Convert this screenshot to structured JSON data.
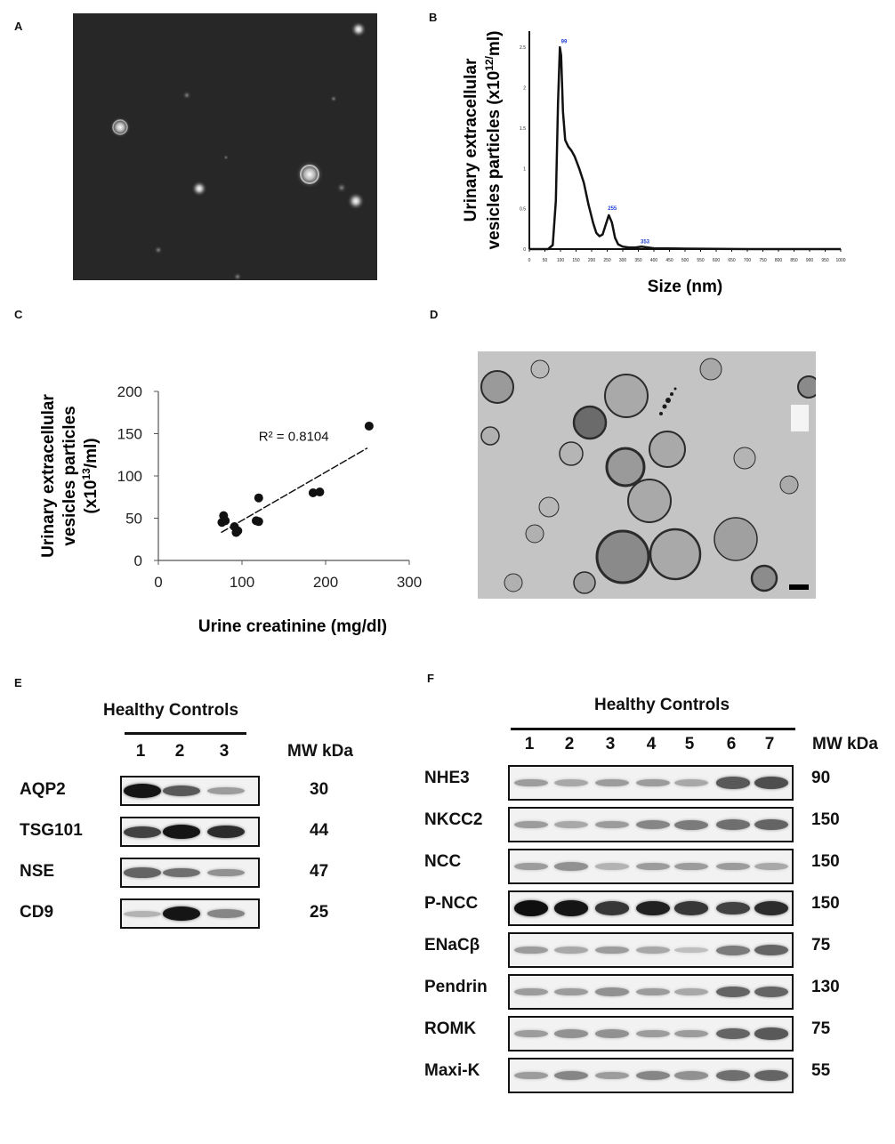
{
  "panels": {
    "a": "A",
    "b": "B",
    "c": "C",
    "d": "D",
    "e": "E",
    "f": "F"
  },
  "chart_data": [
    {
      "type": "line",
      "panel": "B",
      "xlabel": "Size (nm)",
      "ylabel_line1": "Urinary extracellular",
      "ylabel_line2": "vesicles  particles  (x10",
      "ylabel_sup": "12/",
      "ylabel_end": "ml)",
      "xlim": [
        0,
        1000
      ],
      "ylim": [
        0,
        2.7
      ],
      "xticks": [
        "0",
        "50",
        "100",
        "150",
        "200",
        "250",
        "300",
        "350",
        "400",
        "450",
        "500",
        "550",
        "600",
        "650",
        "700",
        "750",
        "800",
        "850",
        "900",
        "950",
        "1000"
      ],
      "yticks": [
        "0",
        "0.5",
        "1",
        "1.5",
        "2",
        "2.5"
      ],
      "peak_labels": [
        {
          "x": 100,
          "y": 2.52,
          "text": "99"
        },
        {
          "x": 255,
          "y": 0.45,
          "text": "255"
        },
        {
          "x": 360,
          "y": 0.04,
          "text": "353"
        }
      ],
      "series": [
        {
          "x": [
            0,
            60,
            75,
            85,
            92,
            98,
            102,
            108,
            115,
            125,
            135,
            145,
            160,
            175,
            190,
            205,
            215,
            225,
            235,
            245,
            255,
            265,
            275,
            285,
            300,
            320,
            340,
            360,
            400,
            500,
            700,
            1000
          ],
          "y": [
            0,
            0,
            0.05,
            0.6,
            1.8,
            2.5,
            2.4,
            1.7,
            1.35,
            1.27,
            1.22,
            1.15,
            1.0,
            0.82,
            0.55,
            0.32,
            0.2,
            0.16,
            0.18,
            0.3,
            0.42,
            0.33,
            0.14,
            0.06,
            0.03,
            0.02,
            0.02,
            0.03,
            0.01,
            0.005,
            0,
            0
          ]
        }
      ]
    },
    {
      "type": "scatter",
      "panel": "C",
      "ylabel_line1": "Urinary extracellular",
      "ylabel_line2": "vesicles particles",
      "ylabel_line3_pre": "(x10",
      "ylabel_line3_sup": "13",
      "ylabel_line3_post": "/ml)",
      "xlabel": "Urine creatinine (mg/dl)",
      "xlim": [
        0,
        300
      ],
      "ylim": [
        0,
        200
      ],
      "xticks": [
        "0",
        "100",
        "200",
        "300"
      ],
      "yticks": [
        "0",
        "50",
        "100",
        "150",
        "200"
      ],
      "annotation": "R² = 0.8104",
      "trendline": {
        "x": [
          75,
          250
        ],
        "y": [
          33,
          133
        ]
      },
      "points": {
        "x": [
          78,
          80,
          76,
          91,
          93,
          95,
          117,
          120,
          120,
          185,
          193,
          252
        ],
        "y": [
          53,
          47,
          45,
          40,
          33,
          35,
          47,
          46,
          74,
          80,
          81,
          159
        ]
      }
    }
  ],
  "blot_e": {
    "header": "Healthy Controls",
    "lanes": [
      "1",
      "2",
      "3"
    ],
    "mw_header": "MW kDa",
    "rows": [
      {
        "label": "AQP2",
        "mw": "30",
        "intensity": [
          0.95,
          0.65,
          0.35
        ]
      },
      {
        "label": "TSG101",
        "mw": "44",
        "intensity": [
          0.75,
          0.95,
          0.85
        ]
      },
      {
        "label": "NSE",
        "mw": "47",
        "intensity": [
          0.6,
          0.55,
          0.4
        ]
      },
      {
        "label": "CD9",
        "mw": "25",
        "intensity": [
          0.25,
          0.95,
          0.45
        ]
      }
    ]
  },
  "blot_f": {
    "header": "Healthy Controls",
    "lanes": [
      "1",
      "2",
      "3",
      "4",
      "5",
      "6",
      "7"
    ],
    "mw_header": "MW kDa",
    "rows": [
      {
        "label": "NHE3",
        "mw": "90",
        "intensity": [
          0.35,
          0.3,
          0.35,
          0.35,
          0.3,
          0.65,
          0.7
        ]
      },
      {
        "label": "NKCC2",
        "mw": "150",
        "intensity": [
          0.35,
          0.3,
          0.35,
          0.45,
          0.5,
          0.55,
          0.6
        ]
      },
      {
        "label": "NCC",
        "mw": "150",
        "intensity": [
          0.35,
          0.4,
          0.25,
          0.35,
          0.35,
          0.35,
          0.3
        ]
      },
      {
        "label": "P-NCC",
        "mw": "150",
        "intensity": [
          0.98,
          0.95,
          0.8,
          0.9,
          0.8,
          0.75,
          0.85
        ]
      },
      {
        "label": "ENaCβ",
        "mw": "75",
        "intensity": [
          0.35,
          0.3,
          0.35,
          0.3,
          0.2,
          0.5,
          0.6
        ]
      },
      {
        "label": "Pendrin",
        "mw": "130",
        "intensity": [
          0.35,
          0.35,
          0.4,
          0.35,
          0.3,
          0.6,
          0.6
        ]
      },
      {
        "label": "ROMK",
        "mw": "75",
        "intensity": [
          0.35,
          0.4,
          0.4,
          0.35,
          0.35,
          0.6,
          0.65
        ]
      },
      {
        "label": "Maxi-K",
        "mw": "55",
        "intensity": [
          0.35,
          0.45,
          0.35,
          0.45,
          0.4,
          0.55,
          0.6
        ]
      }
    ]
  }
}
